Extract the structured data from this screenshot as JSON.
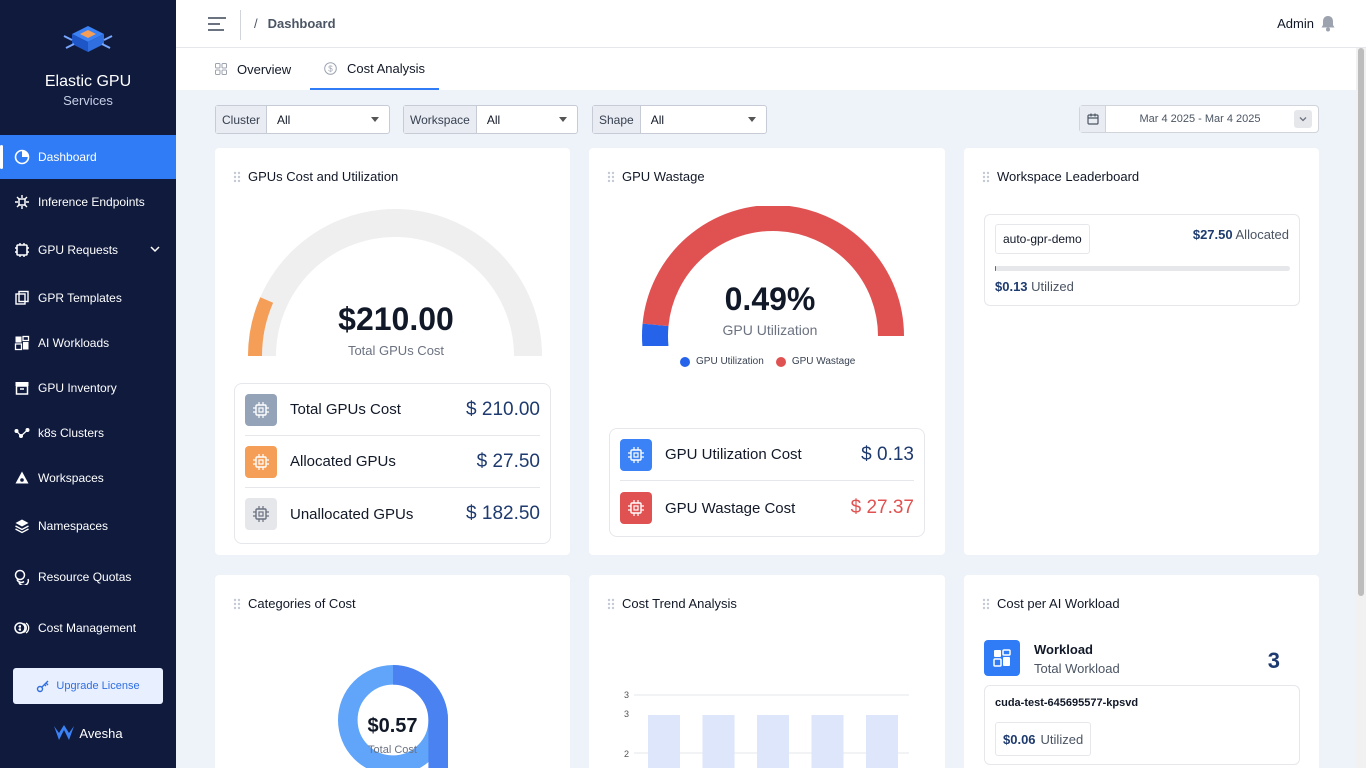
{
  "brand": {
    "title": "Elastic GPU",
    "subtitle": "Services"
  },
  "sidebar": {
    "items": [
      {
        "label": "Dashboard",
        "icon": "pie-chart-icon",
        "active": true
      },
      {
        "label": "Inference Endpoints",
        "icon": "network-icon"
      },
      {
        "label": "GPU Requests",
        "icon": "chip-icon",
        "expandable": true
      },
      {
        "label": "GPR Templates",
        "icon": "template-icon"
      },
      {
        "label": "AI Workloads",
        "icon": "grid-icon"
      },
      {
        "label": "GPU Inventory",
        "icon": "archive-icon"
      },
      {
        "label": "k8s Clusters",
        "icon": "cluster-icon"
      },
      {
        "label": "Workspaces",
        "icon": "workspace-icon"
      },
      {
        "label": "Namespaces",
        "icon": "layers-icon"
      },
      {
        "label": "Resource Quotas",
        "icon": "coins-icon"
      },
      {
        "label": "Cost Management",
        "icon": "cost-icon"
      }
    ],
    "upgrade_label": "Upgrade License",
    "footer_brand": "Avesha"
  },
  "header": {
    "breadcrumb": "Dashboard",
    "user": "Admin"
  },
  "tabs": [
    {
      "label": "Overview",
      "icon": "grid-icon"
    },
    {
      "label": "Cost Analysis",
      "icon": "dollar-icon",
      "active": true
    }
  ],
  "filters": [
    {
      "label": "Cluster",
      "value": "All"
    },
    {
      "label": "Workspace",
      "value": "All"
    },
    {
      "label": "Shape",
      "value": "All"
    }
  ],
  "date_range": "Mar 4 2025 - Mar 4 2025",
  "gpus_cost": {
    "title": "GPUs Cost and Utilization",
    "gauge_value": "$210.00",
    "gauge_label": "Total GPUs Cost",
    "allocated_fraction": 0.131,
    "rows": [
      {
        "label": "Total GPUs Cost",
        "value": "$ 210.00",
        "color": "#94a3b8"
      },
      {
        "label": "Allocated GPUs",
        "value": "$ 27.50",
        "color": "#f59e57"
      },
      {
        "label": "Unallocated GPUs",
        "value": "$ 182.50",
        "color": "#e5e7eb"
      }
    ]
  },
  "wastage": {
    "title": "GPU Wastage",
    "gauge_value": "0.49%",
    "gauge_label": "GPU Utilization",
    "utilization_fraction": 0.0049,
    "legend": [
      {
        "label": "GPU Utilization",
        "color": "#2563eb"
      },
      {
        "label": "GPU Wastage",
        "color": "#e05252"
      }
    ],
    "rows": [
      {
        "label": "GPU Utilization Cost",
        "value": "$ 0.13",
        "color": "#3b82f6"
      },
      {
        "label": "GPU Wastage Cost",
        "value": "$ 27.37",
        "color": "#e05252"
      }
    ]
  },
  "leaderboard": {
    "title": "Workspace Leaderboard",
    "workspace": "auto-gpr-demo",
    "allocated_amount": "$27.50",
    "allocated_label": "Allocated",
    "utilized_amount": "$0.13",
    "utilized_label": "Utilized",
    "utilized_fraction": 0.0047
  },
  "categories": {
    "title": "Categories of Cost",
    "value": "$0.57",
    "label": "Total Cost"
  },
  "trend": {
    "title": "Cost Trend Analysis",
    "chart_data": {
      "type": "bar",
      "y_ticks": [
        "3",
        "3",
        "2"
      ],
      "values": [
        3,
        3,
        3,
        3,
        3
      ]
    }
  },
  "workload": {
    "title": "Cost per AI Workload",
    "head_title": "Workload",
    "head_sub": "Total Workload",
    "count": "3",
    "item_name": "cuda-test-645695577-kpsvd",
    "item_amount": "$0.06",
    "item_label": "Utilized"
  }
}
